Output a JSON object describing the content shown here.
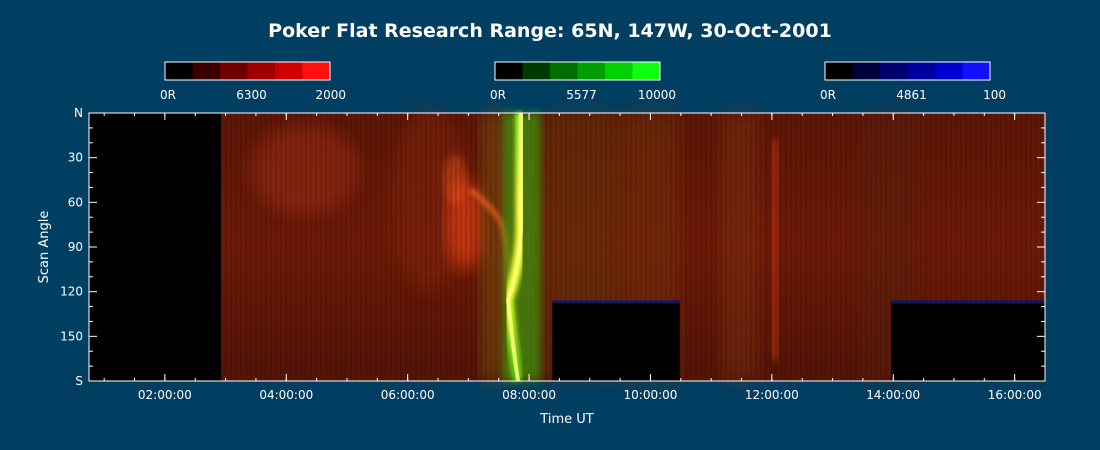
{
  "chart_data": {
    "type": "heatmap",
    "title": "Poker Flat Research Range: 65N, 147W, 30-Oct-2001",
    "xlabel": "Time UT",
    "ylabel": "Scan Angle",
    "xlim": [
      "00:45:00",
      "16:30:00"
    ],
    "x_ticks": [
      "02:00:00",
      "04:00:00",
      "06:00:00",
      "08:00:00",
      "10:00:00",
      "12:00:00",
      "14:00:00",
      "16:00:00"
    ],
    "y_ticks": [
      "N",
      "30",
      "60",
      "90",
      "120",
      "150",
      "S"
    ],
    "colorbars": [
      {
        "name": "6300",
        "min_label": "0R",
        "max_label": "2000",
        "color": "#ff0000",
        "steps": [
          "#000000",
          "#3a0000",
          "#6e0000",
          "#9e0000",
          "#cf0000",
          "#ff1010"
        ]
      },
      {
        "name": "5577",
        "min_label": "0R",
        "max_label": "10000",
        "color": "#00ff00",
        "steps": [
          "#000000",
          "#003a00",
          "#006e00",
          "#009e00",
          "#00cf00",
          "#10ff10"
        ]
      },
      {
        "name": "4861",
        "min_label": "0R",
        "max_label": "100",
        "color": "#0000ff",
        "steps": [
          "#000000",
          "#00003a",
          "#00006e",
          "#00009e",
          "#0000cf",
          "#1010ff"
        ]
      }
    ],
    "no_data_regions": [
      {
        "x0": "00:45:00",
        "x1": "02:52:00",
        "y0": "N",
        "y1": "S"
      },
      {
        "x0": "08:23:00",
        "x1": "10:29:00",
        "y0": 126,
        "y1": "S"
      },
      {
        "x0": "13:58:00",
        "x1": "16:30:00",
        "y0": 126,
        "y1": "S"
      }
    ],
    "features": [
      {
        "type": "bright green-yellow arc",
        "time": "07:45:00",
        "emission": "5577"
      },
      {
        "type": "red arc",
        "time": "07:00:00",
        "emission": "6300"
      },
      {
        "type": "red band",
        "time": "11:55:00",
        "emission": "6300"
      }
    ]
  }
}
